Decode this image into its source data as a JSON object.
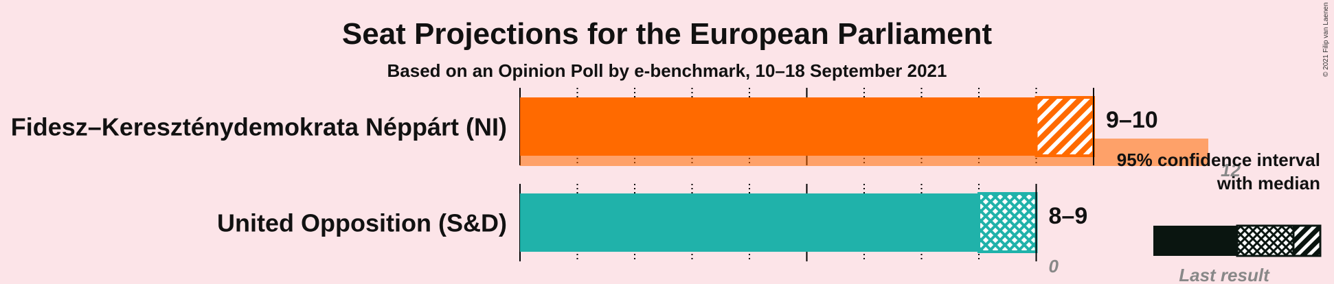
{
  "title": "Seat Projections for the European Parliament",
  "subtitle": "Based on an Opinion Poll by e-benchmark, 10–18 September 2021",
  "copyright": "© 2021 Filip van Laenen",
  "legend": {
    "ci_label_line1": "95% confidence interval",
    "ci_label_line2": "with median",
    "last_result_label": "Last result"
  },
  "chart_data": {
    "type": "bar",
    "title": "Seat Projections for the European Parliament",
    "subtitle": "Based on an Opinion Poll by e-benchmark, 10–18 September 2021",
    "xlim": [
      0,
      13
    ],
    "grid": true,
    "categories": [
      "Fidesz–Kereszténydemokrata Néppárt (NI)",
      "United Opposition (S&D)"
    ],
    "parties": [
      {
        "name": "Fidesz–Kereszténydemokrata Néppárt (NI)",
        "color": "#ff6a00",
        "ci_low": 9,
        "median": 9,
        "ci_high": 10,
        "range_label": "9–10",
        "last_result": 12,
        "last_result_label": "12"
      },
      {
        "name": "United Opposition (S&D)",
        "color": "#20b2aa",
        "ci_low": 8,
        "median": 9,
        "ci_high": 9,
        "range_label": "8–9",
        "last_result": 0,
        "last_result_label": "0"
      }
    ]
  }
}
